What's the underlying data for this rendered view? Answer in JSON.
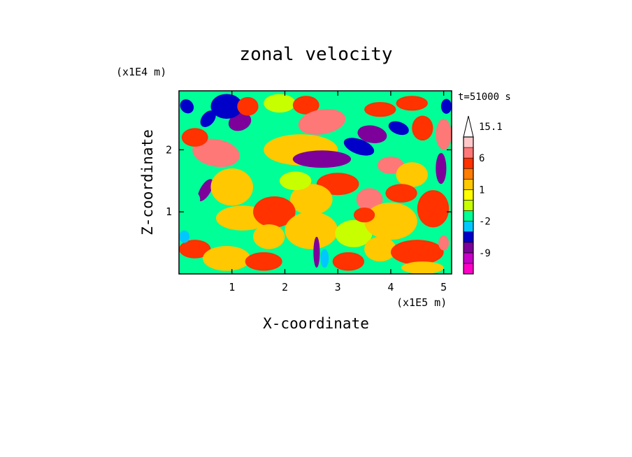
{
  "chart_data": {
    "type": "heatmap",
    "title": "zonal velocity",
    "xlabel": "X-coordinate",
    "ylabel": "Z-coordinate",
    "x_unit": "(x1E5 m)",
    "y_unit": "(x1E4 m)",
    "time_label": "t=51000 s",
    "xlim": [
      0,
      5.15
    ],
    "ylim": [
      0,
      2.95
    ],
    "xticks": [
      "1",
      "2",
      "3",
      "4",
      "5"
    ],
    "yticks": [
      "1",
      "2"
    ],
    "colorbar": {
      "labels": [
        "15.1",
        "6",
        "1",
        "-2",
        "-9"
      ],
      "levels": [
        -12,
        -9,
        -6,
        -3,
        -2,
        -1,
        0,
        1,
        2,
        3,
        6,
        9,
        12,
        15.1
      ],
      "colors": [
        "#ff00c8",
        "#c800c8",
        "#7d009b",
        "#0000c8",
        "#00c8ff",
        "#00ff96",
        "#c8ff00",
        "#ffff00",
        "#ffc800",
        "#ff7d00",
        "#ff3200",
        "#ff7878",
        "#ffc8c8",
        "#ffffff"
      ],
      "extend": "max"
    },
    "field": {
      "background": "#00ff96",
      "features": [
        {
          "x": 0.15,
          "y": 2.7,
          "v": -5,
          "rx": 0.12,
          "ry": 0.12,
          "rot": -40
        },
        {
          "x": 0.55,
          "y": 2.5,
          "v": -6,
          "rx": 0.18,
          "ry": 0.1,
          "rot": -50
        },
        {
          "x": 1.15,
          "y": 2.45,
          "v": -7,
          "rx": 0.22,
          "ry": 0.14,
          "rot": -20
        },
        {
          "x": 0.9,
          "y": 2.7,
          "v": -4,
          "rx": 0.3,
          "ry": 0.2,
          "rot": 0
        },
        {
          "x": 1.3,
          "y": 2.7,
          "v": 3,
          "rx": 0.2,
          "ry": 0.15,
          "rot": 0
        },
        {
          "x": 1.9,
          "y": 2.75,
          "v": -1,
          "rx": 0.3,
          "ry": 0.15,
          "rot": 0
        },
        {
          "x": 2.4,
          "y": 2.72,
          "v": 3,
          "rx": 0.25,
          "ry": 0.15,
          "rot": 0
        },
        {
          "x": 2.7,
          "y": 2.45,
          "v": 6,
          "rx": 0.45,
          "ry": 0.2,
          "rot": -10
        },
        {
          "x": 2.3,
          "y": 2.0,
          "v": 1,
          "rx": 0.7,
          "ry": 0.25,
          "rot": 0
        },
        {
          "x": 0.7,
          "y": 1.95,
          "v": 6,
          "rx": 0.45,
          "ry": 0.22,
          "rot": 10
        },
        {
          "x": 0.3,
          "y": 2.2,
          "v": 3,
          "rx": 0.25,
          "ry": 0.15,
          "rot": 0
        },
        {
          "x": 2.7,
          "y": 1.85,
          "v": -7,
          "rx": 0.55,
          "ry": 0.14,
          "rot": 0
        },
        {
          "x": 3.4,
          "y": 2.05,
          "v": -5,
          "rx": 0.3,
          "ry": 0.12,
          "rot": 20
        },
        {
          "x": 3.65,
          "y": 2.25,
          "v": -7,
          "rx": 0.28,
          "ry": 0.14,
          "rot": 10
        },
        {
          "x": 4.15,
          "y": 2.35,
          "v": -6,
          "rx": 0.2,
          "ry": 0.1,
          "rot": 20
        },
        {
          "x": 3.8,
          "y": 2.65,
          "v": 3,
          "rx": 0.3,
          "ry": 0.12,
          "rot": 0
        },
        {
          "x": 4.4,
          "y": 2.75,
          "v": 3,
          "rx": 0.3,
          "ry": 0.12,
          "rot": 0
        },
        {
          "x": 4.6,
          "y": 2.35,
          "v": 3,
          "rx": 0.2,
          "ry": 0.2,
          "rot": 0
        },
        {
          "x": 5.0,
          "y": 2.25,
          "v": 6,
          "rx": 0.15,
          "ry": 0.25,
          "rot": 0
        },
        {
          "x": 5.05,
          "y": 2.7,
          "v": -5,
          "rx": 0.1,
          "ry": 0.12,
          "rot": 0
        },
        {
          "x": 4.0,
          "y": 1.75,
          "v": 6,
          "rx": 0.25,
          "ry": 0.14,
          "rot": 0
        },
        {
          "x": 4.4,
          "y": 1.6,
          "v": 1,
          "rx": 0.3,
          "ry": 0.2,
          "rot": 0
        },
        {
          "x": 4.95,
          "y": 1.7,
          "v": -7,
          "rx": 0.1,
          "ry": 0.25,
          "rot": 0
        },
        {
          "x": 3.0,
          "y": 1.45,
          "v": 3,
          "rx": 0.4,
          "ry": 0.18,
          "rot": 0
        },
        {
          "x": 3.6,
          "y": 1.2,
          "v": 6,
          "rx": 0.25,
          "ry": 0.18,
          "rot": 0
        },
        {
          "x": 2.5,
          "y": 1.2,
          "v": 1,
          "rx": 0.4,
          "ry": 0.25,
          "rot": 0
        },
        {
          "x": 2.2,
          "y": 1.5,
          "v": -1,
          "rx": 0.3,
          "ry": 0.15,
          "rot": 0
        },
        {
          "x": 0.5,
          "y": 1.35,
          "v": -7,
          "rx": 0.1,
          "ry": 0.2,
          "rot": 30
        },
        {
          "x": 1.0,
          "y": 1.4,
          "v": 1,
          "rx": 0.4,
          "ry": 0.3,
          "rot": 0
        },
        {
          "x": 0.2,
          "y": 1.2,
          "v": -2,
          "rx": 0.2,
          "ry": 0.15,
          "rot": 0
        },
        {
          "x": 1.2,
          "y": 0.9,
          "v": 1,
          "rx": 0.5,
          "ry": 0.2,
          "rot": 0
        },
        {
          "x": 1.8,
          "y": 1.0,
          "v": 3,
          "rx": 0.4,
          "ry": 0.25,
          "rot": 0
        },
        {
          "x": 2.5,
          "y": 0.7,
          "v": 1,
          "rx": 0.5,
          "ry": 0.3,
          "rot": 0
        },
        {
          "x": 3.3,
          "y": 0.65,
          "v": -1,
          "rx": 0.35,
          "ry": 0.22,
          "rot": 0
        },
        {
          "x": 4.0,
          "y": 0.85,
          "v": 1,
          "rx": 0.5,
          "ry": 0.3,
          "rot": 0
        },
        {
          "x": 4.8,
          "y": 1.05,
          "v": 3,
          "rx": 0.3,
          "ry": 0.3,
          "rot": 0
        },
        {
          "x": 0.3,
          "y": 0.4,
          "v": 3,
          "rx": 0.3,
          "ry": 0.15,
          "rot": 0
        },
        {
          "x": 0.9,
          "y": 0.25,
          "v": 1,
          "rx": 0.45,
          "ry": 0.2,
          "rot": 0
        },
        {
          "x": 1.6,
          "y": 0.2,
          "v": 3,
          "rx": 0.35,
          "ry": 0.15,
          "rot": 0
        },
        {
          "x": 2.6,
          "y": 0.35,
          "v": -7,
          "rx": 0.06,
          "ry": 0.25,
          "rot": 0
        },
        {
          "x": 2.75,
          "y": 0.25,
          "v": -3,
          "rx": 0.08,
          "ry": 0.15,
          "rot": 0
        },
        {
          "x": 3.2,
          "y": 0.2,
          "v": 3,
          "rx": 0.3,
          "ry": 0.15,
          "rot": 0
        },
        {
          "x": 3.8,
          "y": 0.4,
          "v": 1,
          "rx": 0.3,
          "ry": 0.2,
          "rot": 0
        },
        {
          "x": 4.5,
          "y": 0.35,
          "v": 3,
          "rx": 0.5,
          "ry": 0.2,
          "rot": 0
        },
        {
          "x": 4.6,
          "y": 0.1,
          "v": 1,
          "rx": 0.4,
          "ry": 0.1,
          "rot": 0
        },
        {
          "x": 5.0,
          "y": 0.5,
          "v": 6,
          "rx": 0.1,
          "ry": 0.12,
          "rot": 0
        },
        {
          "x": 0.1,
          "y": 0.6,
          "v": -3,
          "rx": 0.1,
          "ry": 0.1,
          "rot": 0
        },
        {
          "x": 1.7,
          "y": 0.6,
          "v": 1,
          "rx": 0.3,
          "ry": 0.2,
          "rot": 0
        },
        {
          "x": 3.5,
          "y": 0.95,
          "v": 3,
          "rx": 0.2,
          "ry": 0.12,
          "rot": 0
        },
        {
          "x": 4.2,
          "y": 1.3,
          "v": 3,
          "rx": 0.3,
          "ry": 0.15,
          "rot": 0
        }
      ]
    }
  }
}
